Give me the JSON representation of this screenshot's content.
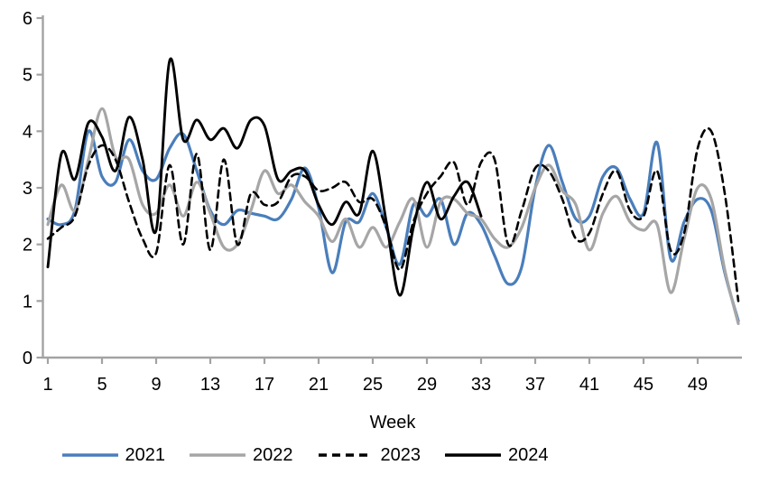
{
  "chart_data": {
    "type": "line",
    "title": "",
    "xlabel": "Week",
    "ylabel": "",
    "x_ticks": [
      1,
      5,
      9,
      13,
      17,
      21,
      25,
      29,
      33,
      37,
      41,
      45,
      49
    ],
    "y_ticks": [
      0,
      1,
      2,
      3,
      4,
      5,
      6
    ],
    "xlim": [
      1,
      52
    ],
    "ylim": [
      0,
      6
    ],
    "grid": false,
    "legend_position": "bottom",
    "axis_color": "#a3a3a3",
    "series": [
      {
        "name": "2021",
        "color": "#4a7ebb",
        "style": "solid",
        "start_week": 1,
        "values": [
          2.45,
          2.35,
          2.6,
          4.0,
          3.2,
          3.1,
          3.85,
          3.3,
          3.15,
          3.7,
          3.95,
          3.3,
          2.6,
          2.35,
          2.6,
          2.55,
          2.5,
          2.45,
          2.8,
          3.35,
          2.65,
          1.5,
          2.4,
          2.4,
          2.9,
          2.3,
          1.65,
          2.7,
          2.5,
          2.8,
          2.0,
          2.55,
          2.35,
          1.8,
          1.3,
          1.6,
          3.0,
          3.75,
          3.1,
          2.45,
          2.5,
          3.2,
          3.35,
          2.8,
          2.55,
          3.8,
          1.75,
          2.4,
          2.8,
          2.6,
          1.5,
          0.65
        ]
      },
      {
        "name": "2022",
        "color": "#a6a6a6",
        "style": "solid",
        "start_week": 1,
        "values": [
          2.35,
          3.05,
          2.6,
          3.5,
          4.4,
          3.55,
          3.5,
          2.7,
          2.55,
          3.05,
          2.5,
          3.1,
          2.55,
          1.95,
          2.0,
          2.6,
          3.3,
          2.9,
          3.05,
          2.75,
          2.5,
          2.05,
          2.45,
          1.95,
          2.3,
          1.95,
          2.4,
          2.8,
          1.95,
          2.75,
          2.8,
          2.55,
          2.45,
          2.1,
          1.95,
          2.3,
          3.0,
          3.4,
          2.95,
          2.7,
          1.9,
          2.55,
          2.85,
          2.4,
          2.25,
          2.35,
          1.15,
          2.1,
          3.0,
          2.8,
          1.55,
          0.6
        ]
      },
      {
        "name": "2023",
        "color": "#000000",
        "style": "dashed",
        "start_week": 1,
        "values": [
          2.1,
          2.3,
          2.5,
          3.4,
          3.75,
          3.5,
          2.75,
          2.1,
          1.85,
          3.4,
          2.0,
          3.6,
          1.9,
          3.5,
          2.0,
          2.9,
          2.7,
          2.75,
          3.2,
          3.2,
          2.95,
          3.0,
          3.1,
          2.75,
          2.8,
          2.3,
          1.55,
          2.4,
          2.9,
          3.2,
          3.45,
          2.7,
          3.45,
          3.5,
          2.0,
          2.6,
          3.35,
          3.3,
          2.8,
          2.1,
          2.2,
          2.9,
          3.3,
          2.6,
          2.5,
          3.3,
          1.9,
          2.2,
          3.7,
          4.0,
          2.9,
          1.0
        ]
      },
      {
        "name": "2024",
        "color": "#000000",
        "style": "solid",
        "start_week": 1,
        "values": [
          1.6,
          3.6,
          3.15,
          4.15,
          3.9,
          3.3,
          4.25,
          3.5,
          2.25,
          5.25,
          3.85,
          4.2,
          3.85,
          4.05,
          3.7,
          4.2,
          4.1,
          3.15,
          3.3,
          3.3,
          2.7,
          2.35,
          2.75,
          2.55,
          3.65,
          2.4,
          1.1,
          2.3,
          3.1,
          2.45,
          2.85,
          3.1,
          2.5
        ]
      }
    ]
  }
}
